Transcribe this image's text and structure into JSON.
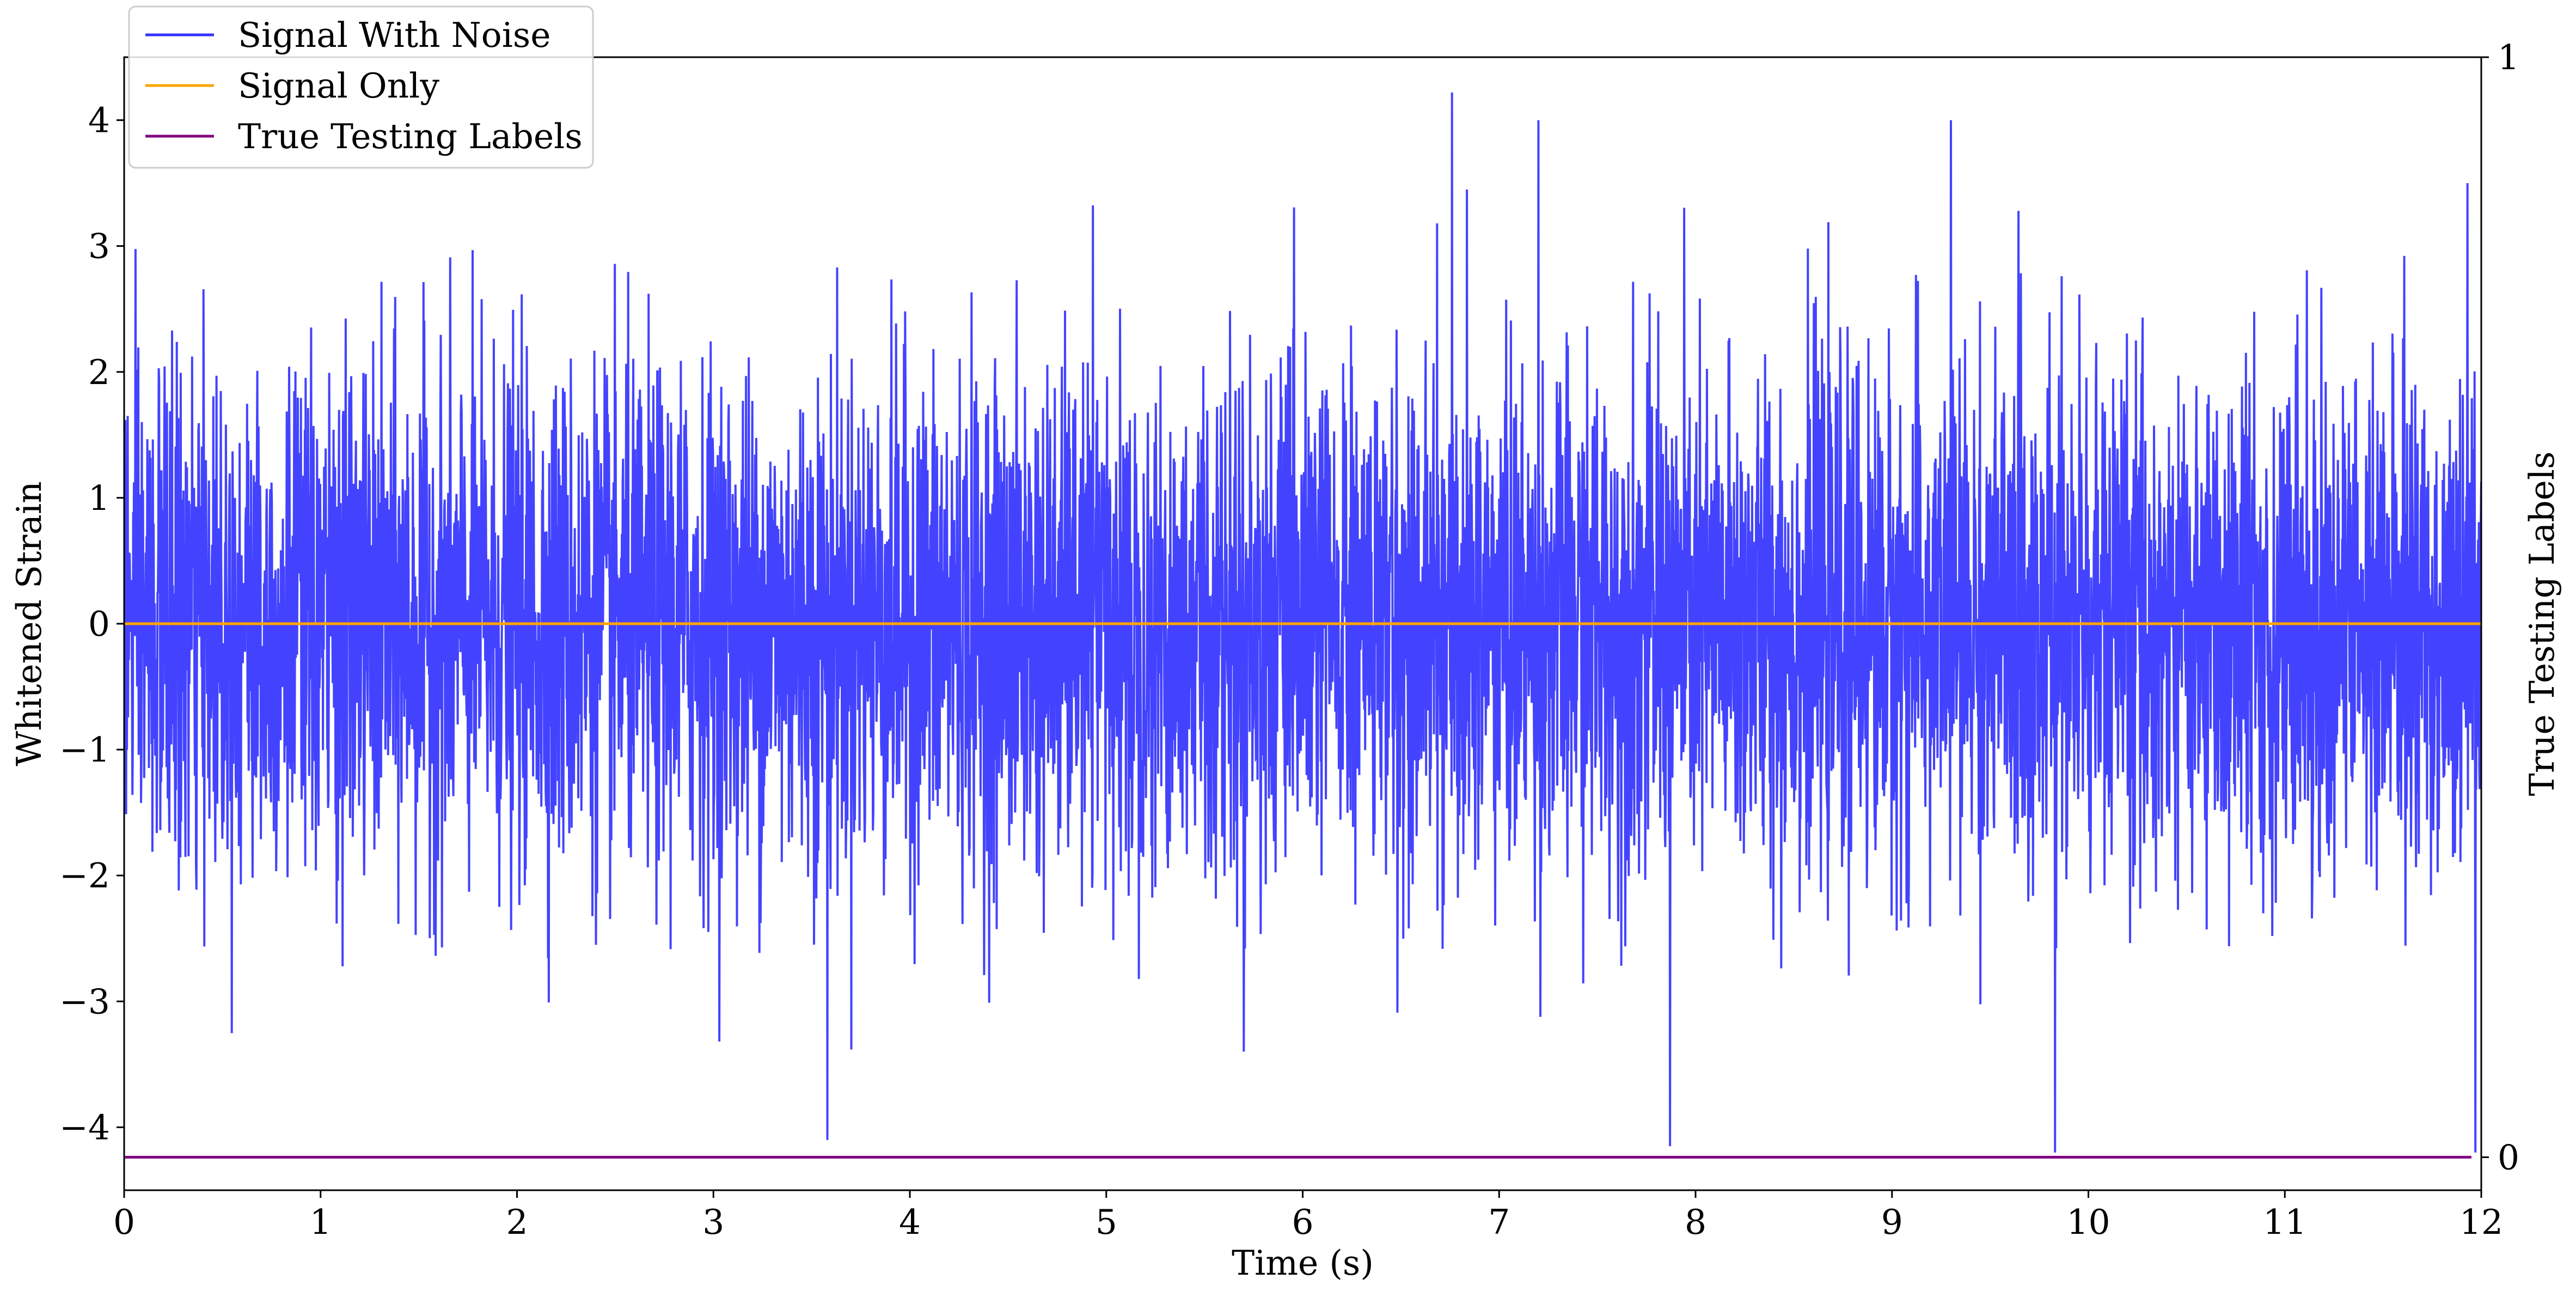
{
  "chart_data": {
    "type": "line",
    "title": "",
    "xlabel": "Time (s)",
    "ylabel": "Whitened Strain",
    "y2label": "True Testing Labels",
    "xlim": [
      0,
      12
    ],
    "ylim": [
      -4.5,
      4.5
    ],
    "y2lim": [
      -0.03,
      1.0
    ],
    "x_ticks": [
      "0",
      "1",
      "2",
      "3",
      "4",
      "5",
      "6",
      "7",
      "8",
      "9",
      "10",
      "11",
      "12"
    ],
    "y_ticks": [
      "4",
      "3",
      "2",
      "1",
      "0",
      "−1",
      "−2",
      "−3",
      "−4"
    ],
    "y2_ticks": [
      "1",
      "0"
    ],
    "grid": false,
    "legend_position": "top-left",
    "series": [
      {
        "name": "Signal With Noise",
        "color": "#3333ff",
        "axis": "left",
        "description_values": {
          "mean": 0,
          "max_approx": 4.22,
          "min_approx": -4.2,
          "notable_peaks": [
            [
              6.76,
              4.22
            ],
            [
              7.2,
              4.0
            ],
            [
              9.3,
              4.0
            ],
            [
              11.93,
              3.5
            ]
          ],
          "notable_troughs": [
            [
              3.58,
              -4.1
            ],
            [
              7.87,
              -4.15
            ],
            [
              9.83,
              -4.2
            ],
            [
              11.97,
              -4.2
            ]
          ]
        }
      },
      {
        "name": "Signal Only",
        "color": "#ffa500",
        "axis": "left",
        "x": [
          0,
          12
        ],
        "y": [
          0,
          0
        ]
      },
      {
        "name": "True Testing Labels",
        "color": "#800080",
        "axis": "right",
        "x": [
          0,
          11.95
        ],
        "y": [
          0,
          0
        ]
      }
    ]
  }
}
